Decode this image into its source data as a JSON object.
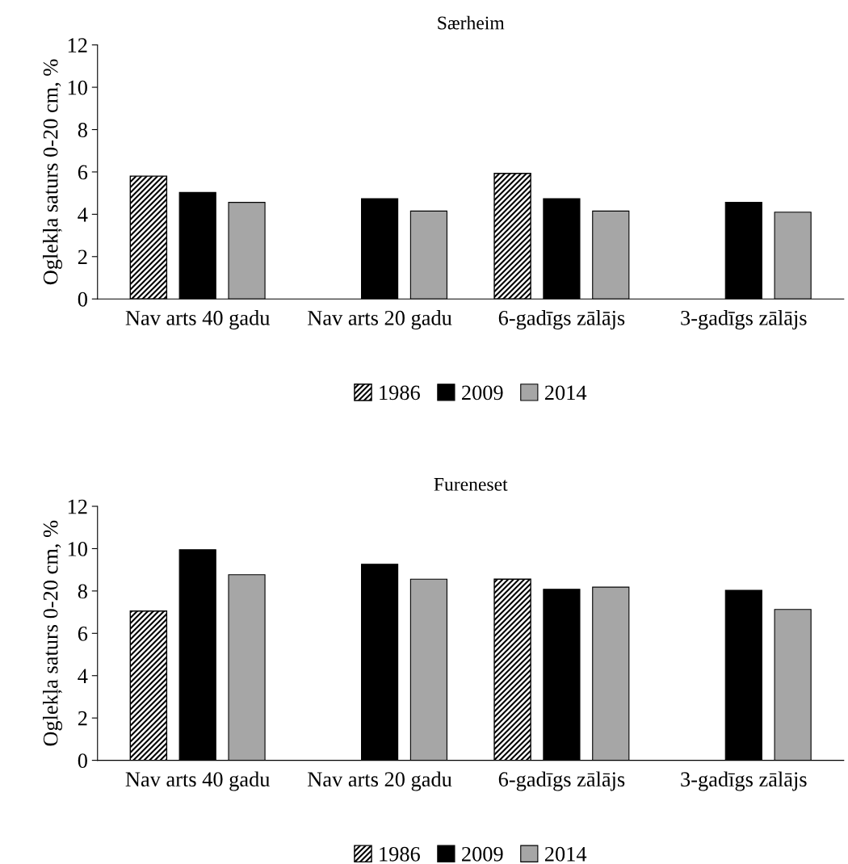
{
  "chart_data": [
    {
      "type": "bar",
      "title": "Særheim",
      "ylabel": "Oglekļa saturs 0-20 cm, %",
      "categories": [
        "Nav arts 40 gadu",
        "Nav arts 20 gadu",
        "6-gadīgs zālājs",
        "3-gadīgs zālājs"
      ],
      "ylim": [
        0,
        12
      ],
      "yticks": [
        0,
        2,
        4,
        6,
        8,
        10,
        12
      ],
      "grid": false,
      "legend": "bottom",
      "series": [
        {
          "name": "1986",
          "color": "#000000",
          "values": [
            5.8,
            null,
            5.93,
            null
          ]
        },
        {
          "name": "2009",
          "color": "#000000",
          "values": [
            5.03,
            4.74,
            4.74,
            4.56
          ]
        },
        {
          "name": "2014",
          "color": "#a6a6a6",
          "values": [
            4.56,
            4.15,
            4.15,
            4.1
          ]
        }
      ]
    },
    {
      "type": "bar",
      "title": "Fureneset",
      "ylabel": "Oglekļa saturs 0-20 cm, %",
      "categories": [
        "Nav arts 40 gadu",
        "Nav arts 20 gadu",
        "6-gadīgs zālājs",
        "3-gadīgs zālājs"
      ],
      "ylim": [
        0,
        12
      ],
      "yticks": [
        0,
        2,
        4,
        6,
        8,
        10,
        12
      ],
      "grid": false,
      "legend": "bottom",
      "series": [
        {
          "name": "1986",
          "color": "#000000",
          "values": [
            7.05,
            null,
            8.56,
            null
          ]
        },
        {
          "name": "2009",
          "color": "#000000",
          "values": [
            9.95,
            9.26,
            8.08,
            8.03
          ]
        },
        {
          "name": "2014",
          "color": "#a6a6a6",
          "values": [
            8.77,
            8.56,
            8.18,
            7.13
          ]
        }
      ]
    }
  ]
}
